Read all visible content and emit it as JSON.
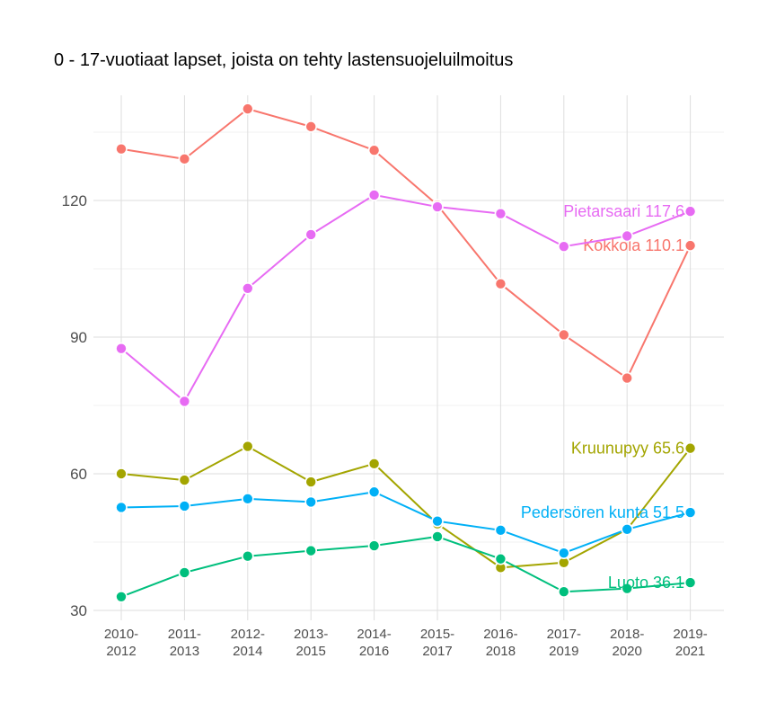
{
  "title": "0 - 17-vuotiaat lapset, joista on tehty lastensuojeluilmoitus",
  "chart_data": {
    "type": "line",
    "title": "0 - 17-vuotiaat lapset, joista on tehty lastensuojeluilmoitus",
    "xlabel": "",
    "ylabel": "",
    "categories": [
      [
        "2010-",
        "2012"
      ],
      [
        "2011-",
        "2013"
      ],
      [
        "2012-",
        "2014"
      ],
      [
        "2013-",
        "2015"
      ],
      [
        "2014-",
        "2016"
      ],
      [
        "2015-",
        "2017"
      ],
      [
        "2016-",
        "2018"
      ],
      [
        "2017-",
        "2019"
      ],
      [
        "2018-",
        "2020"
      ],
      [
        "2019-",
        "2021"
      ]
    ],
    "yticks": [
      30,
      60,
      90,
      120
    ],
    "ylim": [
      28,
      143
    ],
    "grid": true,
    "legend": "none (end labels)",
    "series": [
      {
        "name": "Kokkola",
        "color": "#F8766D",
        "end_label": "Kokkola 110.1",
        "values": [
          131.3,
          129.1,
          140.1,
          136.2,
          131.0,
          119.0,
          101.7,
          90.5,
          81.0,
          110.1
        ]
      },
      {
        "name": "Pietarsaari",
        "color": "#E76BF3",
        "end_label": "Pietarsaari 117.6",
        "values": [
          87.5,
          75.9,
          100.7,
          112.5,
          121.2,
          118.6,
          117.1,
          109.9,
          112.2,
          117.6
        ]
      },
      {
        "name": "Kruunupyy",
        "color": "#A3A500",
        "end_label": "Kruunupyy 65.6",
        "values": [
          60.0,
          58.6,
          66.0,
          58.2,
          62.2,
          49.0,
          39.4,
          40.5,
          47.8,
          65.6
        ]
      },
      {
        "name": "Pedersören kunta",
        "color": "#00B0F6",
        "end_label": "Pedersören kunta 51.5",
        "values": [
          52.6,
          52.9,
          54.5,
          53.8,
          56.0,
          49.6,
          47.6,
          42.6,
          47.8,
          51.5
        ]
      },
      {
        "name": "Luoto",
        "color": "#00BF7D",
        "end_label": "Luoto 36.1",
        "values": [
          33.0,
          38.3,
          41.9,
          43.1,
          44.2,
          46.2,
          41.3,
          34.1,
          34.8,
          36.1
        ]
      }
    ]
  }
}
